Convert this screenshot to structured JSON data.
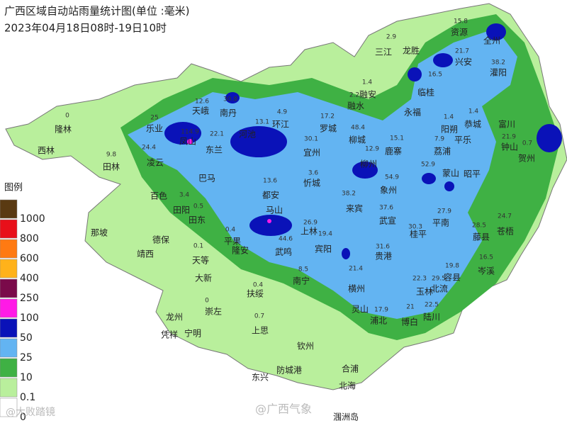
{
  "header": {
    "title": "广西区域自动站雨量统计图(单位 :毫米)",
    "subtitle": "2023年04月18日08时-19日10时"
  },
  "legend": {
    "title": "图例",
    "items": [
      {
        "label": "1000",
        "color": "#5a3a12"
      },
      {
        "label": "800",
        "color": "#e8101a"
      },
      {
        "label": "600",
        "color": "#ff7a12"
      },
      {
        "label": "400",
        "color": "#ffb21a"
      },
      {
        "label": "250",
        "color": "#7a0a4a"
      },
      {
        "label": "100",
        "color": "#ff1ae6"
      },
      {
        "label": "50",
        "color": "#0a12b8"
      },
      {
        "label": "25",
        "color": "#63b4f2"
      },
      {
        "label": "10",
        "color": "#3fb144"
      },
      {
        "label": "0.1",
        "color": "#b9ef9c"
      },
      {
        "label": "0",
        "color": "#ffffff"
      }
    ]
  },
  "places": [
    {
      "name": "隆林",
      "value": "0"
    },
    {
      "name": "西林"
    },
    {
      "name": "田林",
      "value": "9.8"
    },
    {
      "name": "乐业",
      "value": "25"
    },
    {
      "name": "凌云",
      "value": "24.4"
    },
    {
      "name": "天峨",
      "value": "12.6"
    },
    {
      "name": "南丹",
      "value": "30.8"
    },
    {
      "name": "凤山",
      "value": "114.9"
    },
    {
      "name": "东兰",
      "value": "22.1"
    },
    {
      "name": "河池",
      "value": "13.1"
    },
    {
      "name": "环江",
      "value": "4.9"
    },
    {
      "name": "罗城",
      "value": "17.2"
    },
    {
      "name": "宜州",
      "value": "30.1"
    },
    {
      "name": "融水",
      "value": "2.2"
    },
    {
      "name": "融安",
      "value": "1.4"
    },
    {
      "name": "三江",
      "value": "2.9"
    },
    {
      "name": "龙胜"
    },
    {
      "name": "资源",
      "value": "15.8"
    },
    {
      "name": "全州"
    },
    {
      "name": "兴安",
      "value": "21.7"
    },
    {
      "name": "灌阳",
      "value": "38.2"
    },
    {
      "name": "临桂",
      "value": "16.5"
    },
    {
      "name": "永福"
    },
    {
      "name": "阳朔",
      "value": "1.4"
    },
    {
      "name": "恭城",
      "value": "1.4"
    },
    {
      "name": "平乐"
    },
    {
      "name": "富川"
    },
    {
      "name": "钟山",
      "value": "21.9"
    },
    {
      "name": "贺州",
      "value": "0.7"
    },
    {
      "name": "荔浦",
      "value": "7.9"
    },
    {
      "name": "柳城",
      "value": "48.4"
    },
    {
      "name": "鹿寨",
      "value": "15.1"
    },
    {
      "name": "柳州",
      "value": "12.9"
    },
    {
      "name": "象州",
      "value": "54.9"
    },
    {
      "name": "蒙山",
      "value": "52.9"
    },
    {
      "name": "昭平"
    },
    {
      "name": "巴马"
    },
    {
      "name": "都安",
      "value": "13.6"
    },
    {
      "name": "忻城",
      "value": "3.6"
    },
    {
      "name": "百色"
    },
    {
      "name": "田阳",
      "value": "3.4"
    },
    {
      "name": "田东",
      "value": "0.5"
    },
    {
      "name": "德保"
    },
    {
      "name": "那坡"
    },
    {
      "name": "靖西"
    },
    {
      "name": "马山"
    },
    {
      "name": "上林",
      "value": "26.9"
    },
    {
      "name": "来宾",
      "value": "38.2"
    },
    {
      "name": "武宣",
      "value": "37.6"
    },
    {
      "name": "桂平",
      "value": "30.3"
    },
    {
      "name": "平南",
      "value": "27.9"
    },
    {
      "name": "藤县",
      "value": "28.5"
    },
    {
      "name": "苍梧",
      "value": "24.7"
    },
    {
      "name": "岑溪",
      "value": "16.5"
    },
    {
      "name": "平果",
      "value": "0.4"
    },
    {
      "name": "隆安"
    },
    {
      "name": "武鸣",
      "value": "44.6"
    },
    {
      "name": "宾阳",
      "value": "19.4"
    },
    {
      "name": "贵港",
      "value": "31.6"
    },
    {
      "name": "天等",
      "value": "0.1"
    },
    {
      "name": "大新"
    },
    {
      "name": "南宁",
      "value": "8.5"
    },
    {
      "name": "横州",
      "value": "21.4"
    },
    {
      "name": "扶绥",
      "value": "0.4"
    },
    {
      "name": "灵山",
      "value": "17.9"
    },
    {
      "name": "浦北"
    },
    {
      "name": "玉林",
      "value": "22.3"
    },
    {
      "name": "北流",
      "value": "29.5"
    },
    {
      "name": "容县",
      "value": "19.8"
    },
    {
      "name": "博白",
      "value": "21"
    },
    {
      "name": "陆川",
      "value": "22.5"
    },
    {
      "name": "龙州"
    },
    {
      "name": "崇左",
      "value": "0"
    },
    {
      "name": "凭祥"
    },
    {
      "name": "宁明"
    },
    {
      "name": "上思",
      "value": "0.7"
    },
    {
      "name": "钦州"
    },
    {
      "name": "防城港"
    },
    {
      "name": "东兴"
    },
    {
      "name": "合浦"
    },
    {
      "name": "北海"
    },
    {
      "name": "涠洲岛"
    }
  ],
  "watermarks": [
    "@大败踏镜",
    "@广西气象"
  ]
}
